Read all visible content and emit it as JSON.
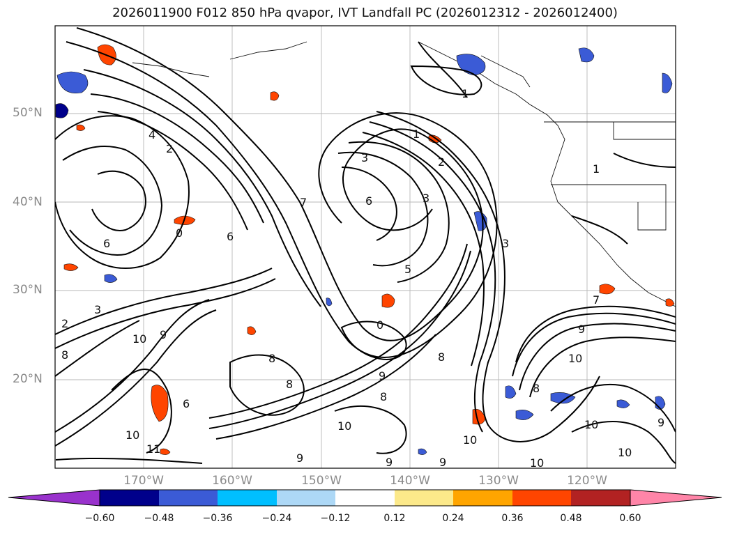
{
  "title": "2026011900 F012 850 hPa qvapor, IVT Landfall PC (2026012312 - 2026012400)",
  "lat_labels": [
    "50°N",
    "40°N",
    "30°N",
    "20°N"
  ],
  "lon_labels": [
    "170°W",
    "160°W",
    "150°W",
    "140°W",
    "130°W",
    "120°W"
  ],
  "colorbar": {
    "ticks": [
      "−0.60",
      "−0.48",
      "−0.36",
      "−0.24",
      "−0.12",
      "0.12",
      "0.24",
      "0.36",
      "0.48",
      "0.60"
    ],
    "colors": [
      "#9932CC",
      "#00008B",
      "#3B5BD6",
      "#00BFFF",
      "#ADD8F6",
      "#FFFFFF",
      "#FCE98A",
      "#FFA500",
      "#FF4500",
      "#B22222",
      "#FF85A8"
    ]
  },
  "contour_labels": [
    "1",
    "3",
    "6",
    "5",
    "0",
    "4",
    "2",
    "9",
    "10",
    "8",
    "7",
    "11"
  ]
}
